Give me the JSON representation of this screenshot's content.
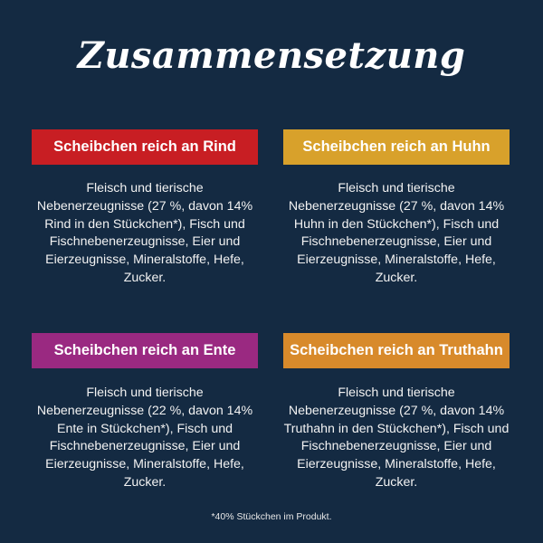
{
  "title": "Zusammensetzung",
  "sections": [
    {
      "label": "Scheibchen reich an Rind",
      "color": "#c81e23",
      "lines": [
        "Fleisch und tierische",
        "Nebenerzeugnisse (27 %, davon 14%",
        "Rind in den Stückchen*), Fisch und",
        "Fischnebenerzeugnisse, Eier und",
        "Eierzeugnisse, Mineralstoffe, Hefe,",
        "Zucker."
      ]
    },
    {
      "label": "Scheibchen reich an Huhn",
      "color": "#d8a12b",
      "lines": [
        "Fleisch und tierische",
        "Nebenerzeugnisse (27 %, davon 14%",
        "Huhn in den Stückchen*), Fisch und",
        "Fischnebenerzeugnisse, Eier und",
        "Eierzeugnisse, Mineralstoffe, Hefe,",
        "Zucker."
      ]
    },
    {
      "label": "Scheibchen reich an Ente",
      "color": "#9a2981",
      "lines": [
        "Fleisch und tierische",
        "Nebenerzeugnisse (22 %, davon 14%",
        "Ente in Stückchen*), Fisch und",
        "Fischnebenerzeugnisse, Eier und",
        "Eierzeugnisse, Mineralstoffe, Hefe,",
        "Zucker."
      ]
    },
    {
      "label": "Scheibchen reich an Truthahn",
      "color": "#d88a2b",
      "lines": [
        "Fleisch und tierische",
        "Nebenerzeugnisse (27 %, davon 14%",
        "Truthahn in den Stückchen*), Fisch und",
        "Fischnebenerzeugnisse, Eier und",
        "Eierzeugnisse, Mineralstoffe, Hefe,",
        "Zucker."
      ]
    }
  ],
  "footnote": "*40% Stückchen im Produkt."
}
